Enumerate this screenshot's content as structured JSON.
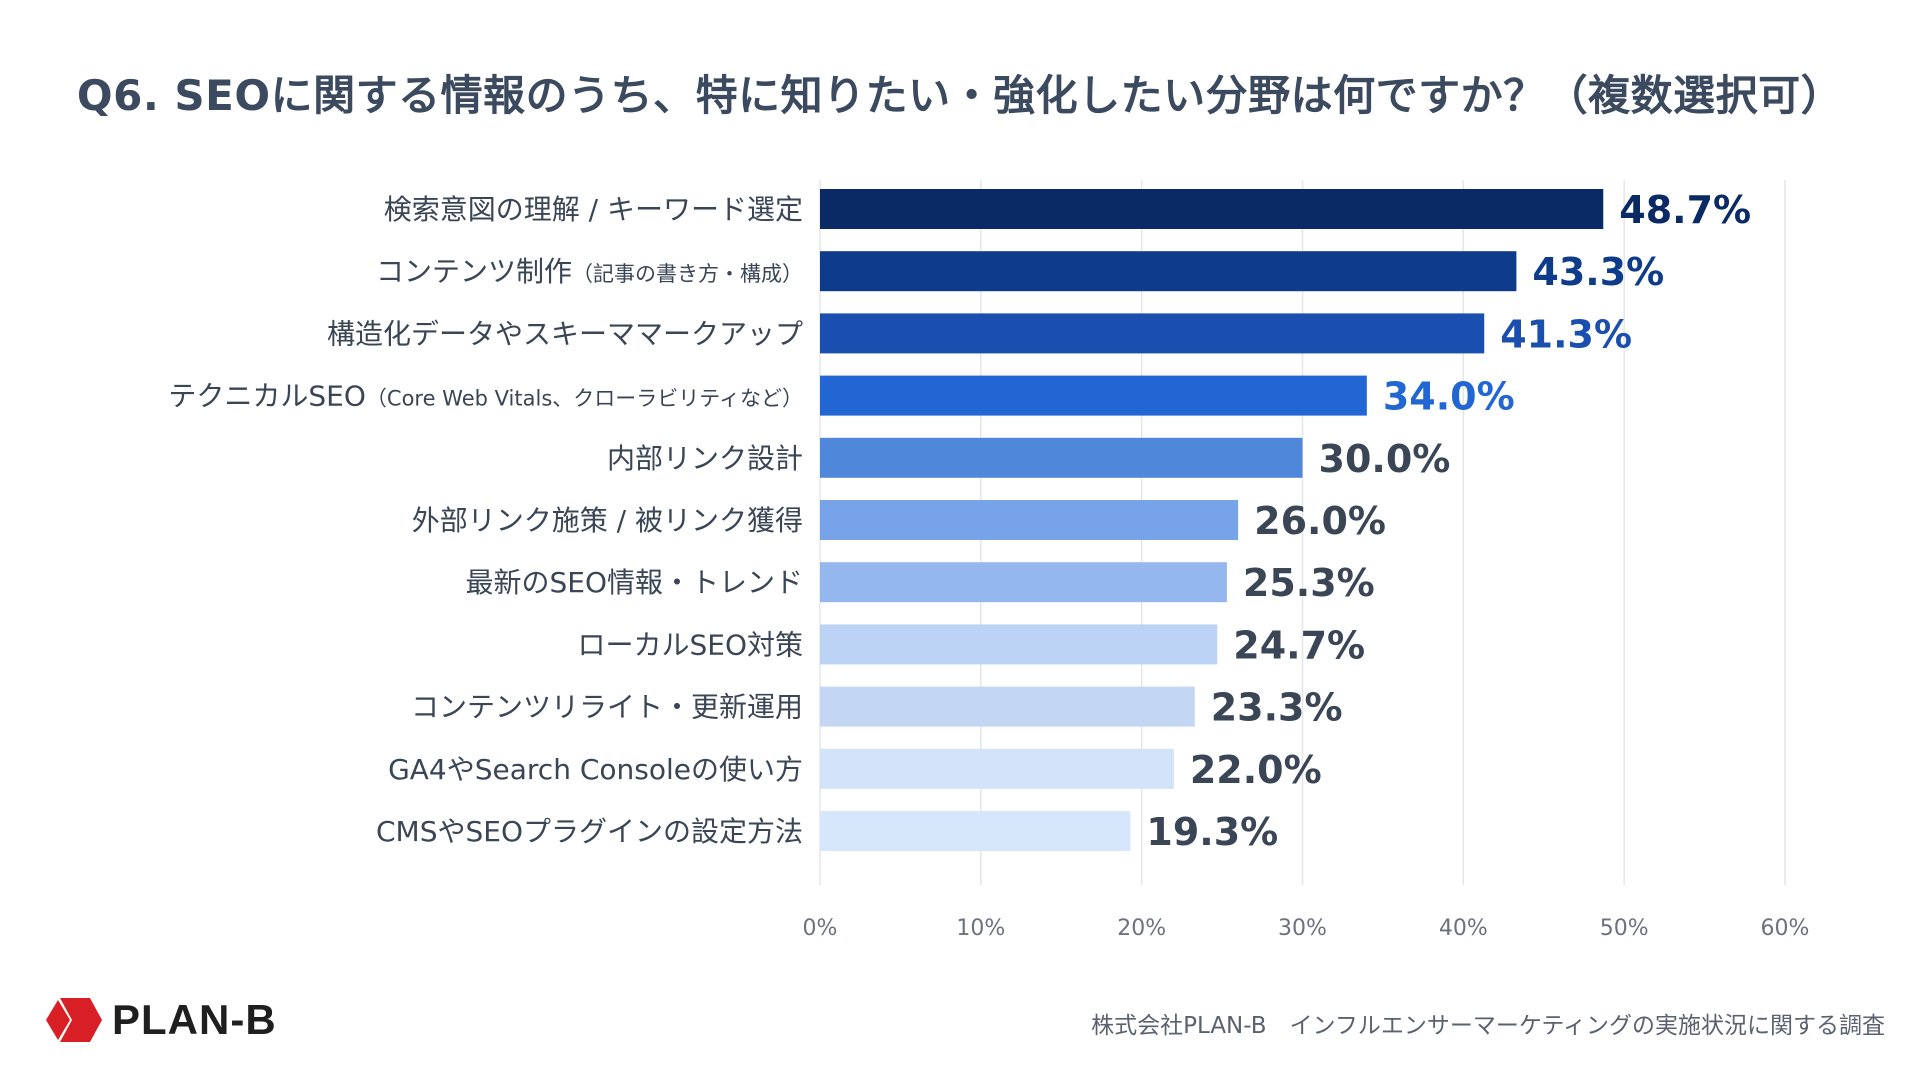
{
  "chart_data": {
    "type": "bar",
    "orientation": "horizontal",
    "title": "Q6. SEOに関する情報のうち、特に知りたい・強化したい分野は何ですか？（複数選択可）",
    "categories": [
      {
        "label": "検索意図の理解 / キーワード選定",
        "note": ""
      },
      {
        "label": "コンテンツ制作",
        "note": "（記事の書き方・構成）"
      },
      {
        "label": "構造化データやスキーママークアップ",
        "note": ""
      },
      {
        "label": "テクニカルSEO",
        "note": "（Core Web Vitals、クローラビリティなど）"
      },
      {
        "label": "内部リンク設計",
        "note": ""
      },
      {
        "label": "外部リンク施策 / 被リンク獲得",
        "note": ""
      },
      {
        "label": "最新のSEO情報・トレンド",
        "note": ""
      },
      {
        "label": "ローカルSEO対策",
        "note": ""
      },
      {
        "label": "コンテンツリライト・更新運用",
        "note": ""
      },
      {
        "label": "GA4やSearch Consoleの使い方",
        "note": ""
      },
      {
        "label": "CMSやSEOプラグインの設定方法",
        "note": ""
      }
    ],
    "values": [
      48.7,
      43.3,
      41.3,
      34.0,
      30.0,
      26.0,
      25.3,
      24.7,
      23.3,
      22.0,
      19.3
    ],
    "value_labels": [
      "48.7%",
      "43.3%",
      "41.3%",
      "34.0%",
      "30.0%",
      "26.0%",
      "25.3%",
      "24.7%",
      "23.3%",
      "22.0%",
      "19.3%"
    ],
    "bar_colors": [
      "#0a2a66",
      "#0e3c8a",
      "#1a4fb0",
      "#2266d4",
      "#4f88db",
      "#77a4e8",
      "#94b8ee",
      "#bcd3f5",
      "#c3d6f4",
      "#d3e3fa",
      "#d6e6fb"
    ],
    "label_colors": [
      "#0a2a66",
      "#0e3c8a",
      "#1a4fb0",
      "#2266d4",
      "#3a4556",
      "#3a4556",
      "#3a4556",
      "#3a4556",
      "#3a4556",
      "#3a4556",
      "#3a4556"
    ],
    "xlim": [
      0,
      60
    ],
    "xticks": [
      0,
      10,
      20,
      30,
      40,
      50,
      60
    ],
    "xtick_labels": [
      "0%",
      "10%",
      "20%",
      "30%",
      "40%",
      "50%",
      "60%"
    ],
    "grid": true
  },
  "logo": {
    "text": "PLAN-B",
    "color": "#d91f26"
  },
  "source_note": "株式会社PLAN-B　インフルエンサーマーケティングの実施状況に関する調査"
}
